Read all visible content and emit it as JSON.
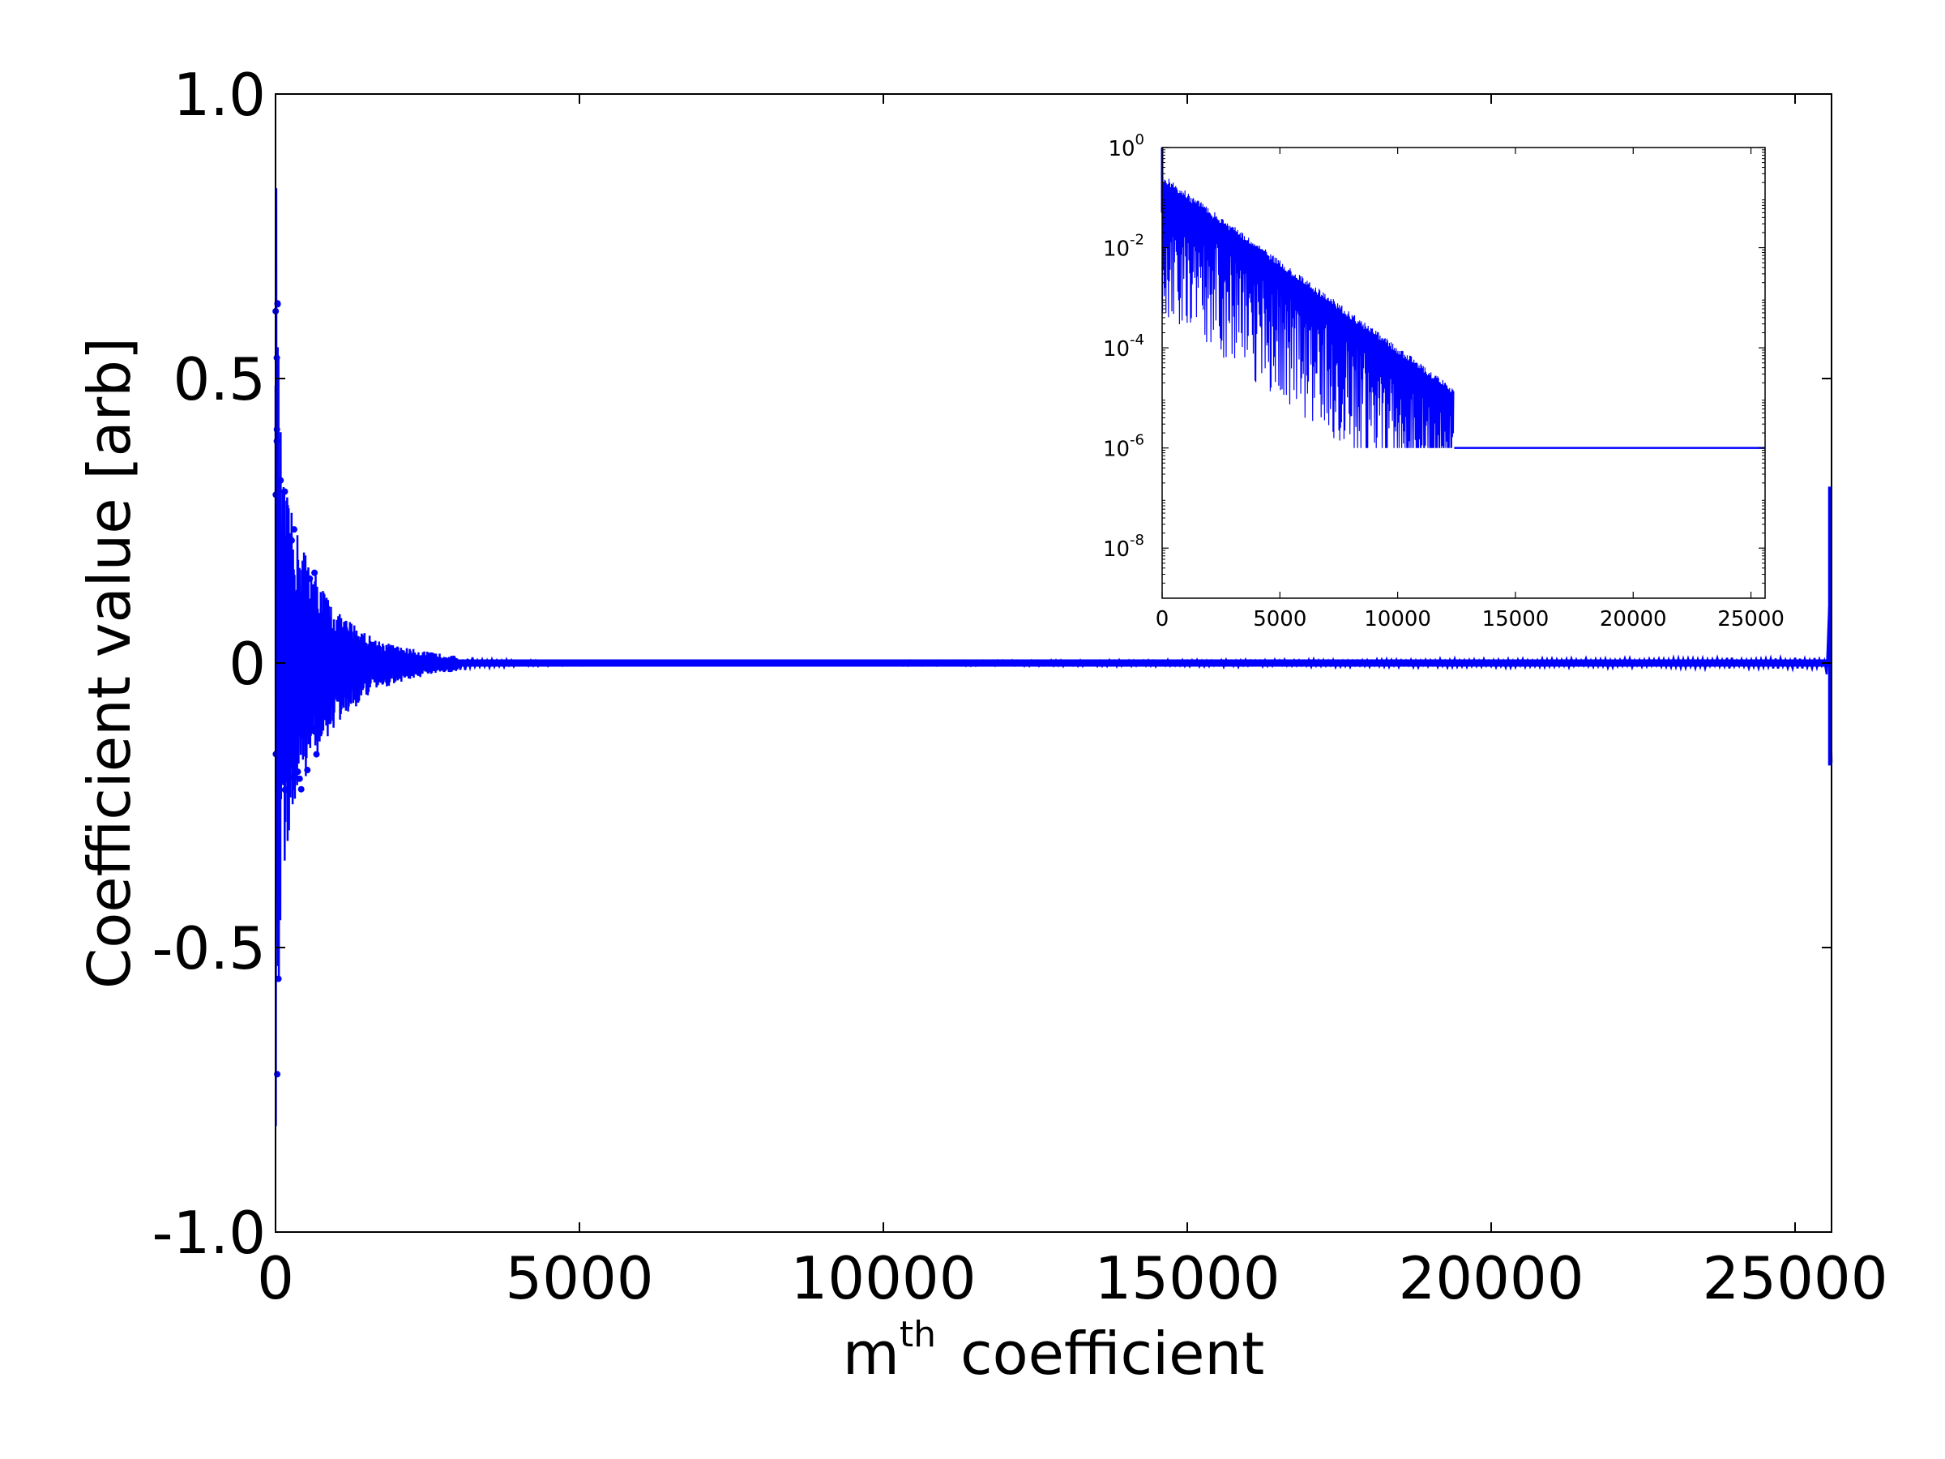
{
  "chart_data": [
    {
      "type": "line",
      "title": "",
      "xlabel": "m",
      "xlabel_sup": "th",
      "xlabel_rest": "coefficient",
      "ylabel": "Coefficient value [arb]",
      "xlim": [
        0,
        25600
      ],
      "ylim": [
        -1.0,
        1.0
      ],
      "x_ticks": [
        0,
        5000,
        10000,
        15000,
        20000,
        25000
      ],
      "x_tick_labels": [
        "0",
        "5000",
        "10000",
        "15000",
        "20000",
        "25000"
      ],
      "y_ticks": [
        -1.0,
        -0.5,
        0,
        0.5,
        1.0
      ],
      "y_tick_labels": [
        "-1.0",
        "-0.5",
        "0",
        "0.5",
        "1.0"
      ],
      "grid": false,
      "series_color": "#0000ff",
      "envelope": {
        "x": [
          0,
          40,
          100,
          200,
          300,
          400,
          500,
          700,
          1000,
          1300,
          1600,
          2000,
          2500,
          3000,
          3500,
          4000,
          5000,
          6000,
          25500,
          25550,
          25600
        ],
        "upper": [
          0.97,
          0.6,
          0.34,
          0.29,
          0.25,
          0.22,
          0.2,
          0.15,
          0.09,
          0.07,
          0.045,
          0.03,
          0.02,
          0.012,
          0.008,
          0.005,
          0.003,
          0.002,
          0.01,
          0.05,
          0.31
        ],
        "lower": [
          -0.93,
          -0.7,
          -0.4,
          -0.32,
          -0.29,
          -0.24,
          -0.2,
          -0.16,
          -0.11,
          -0.08,
          -0.05,
          -0.035,
          -0.022,
          -0.014,
          -0.009,
          -0.006,
          -0.004,
          -0.003,
          -0.01,
          -0.06,
          -0.18
        ]
      }
    },
    {
      "type": "line",
      "title": "",
      "xlabel": "",
      "ylabel": "",
      "yscale": "log",
      "xlim": [
        0,
        25600
      ],
      "ylim": [
        1e-09,
        1.0
      ],
      "x_ticks": [
        0,
        5000,
        10000,
        15000,
        20000,
        25000
      ],
      "x_tick_labels": [
        "0",
        "5000",
        "10000",
        "15000",
        "20000",
        "25000"
      ],
      "y_tick_exponents": [
        0,
        -2,
        -4,
        -6,
        -8
      ],
      "y_tick_base": "10",
      "grid": false,
      "series_color": "#0000ff",
      "decay": {
        "x": [
          0,
          12400
        ],
        "upper": [
          0.3,
          1.6e-05
        ],
        "lower_floor": 1e-06,
        "peak": 1.0
      },
      "plateau": {
        "x": [
          12400,
          25600
        ],
        "y": 1e-06
      }
    }
  ]
}
